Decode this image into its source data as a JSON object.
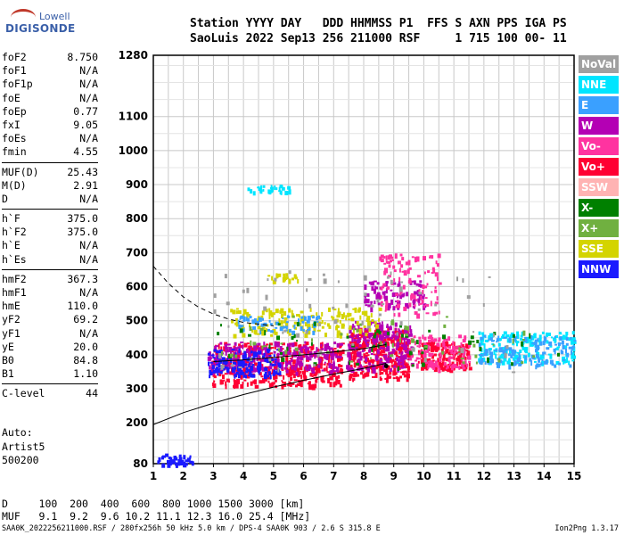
{
  "logo": {
    "line1": "Lowell",
    "line2": "DIGISONDE"
  },
  "header": {
    "line1": "Station YYYY DAY   DDD HHMMSS P1  FFS S AXN PPS IGA PS",
    "line2": "SaoLuis 2022 Sep13 256 211000 RSF     1 715 100 00- 11"
  },
  "params": {
    "group1": [
      {
        "label": "foF2",
        "value": "8.750"
      },
      {
        "label": "foF1",
        "value": "N/A"
      },
      {
        "label": "foF1p",
        "value": "N/A"
      },
      {
        "label": "foE",
        "value": "N/A"
      },
      {
        "label": "foEp",
        "value": "0.77"
      },
      {
        "label": "fxI",
        "value": "9.05"
      },
      {
        "label": "foEs",
        "value": "N/A"
      },
      {
        "label": "fmin",
        "value": "4.55"
      }
    ],
    "group2": [
      {
        "label": "MUF(D)",
        "value": "25.43"
      },
      {
        "label": "M(D)",
        "value": "2.91"
      },
      {
        "label": "D",
        "value": "N/A"
      }
    ],
    "group3": [
      {
        "label": "h`F",
        "value": "375.0"
      },
      {
        "label": "h`F2",
        "value": "375.0"
      },
      {
        "label": "h`E",
        "value": "N/A"
      },
      {
        "label": "h`Es",
        "value": "N/A"
      }
    ],
    "group4": [
      {
        "label": "hmF2",
        "value": "367.3"
      },
      {
        "label": "hmF1",
        "value": "N/A"
      },
      {
        "label": "hmE",
        "value": "110.0"
      },
      {
        "label": "yF2",
        "value": "69.2"
      },
      {
        "label": "yF1",
        "value": "N/A"
      },
      {
        "label": "yE",
        "value": "20.0"
      },
      {
        "label": "B0",
        "value": "84.8"
      },
      {
        "label": "B1",
        "value": "1.10"
      }
    ],
    "group5": [
      {
        "label": "C-level",
        "value": "44"
      }
    ]
  },
  "auto": {
    "line1": "Auto:",
    "line2": "Artist5",
    "line3": "500200"
  },
  "legend": [
    {
      "label": "NoVal",
      "color": "#a0a0a0"
    },
    {
      "label": "NNE",
      "color": "#00e5ff"
    },
    {
      "label": "E",
      "color": "#3aa0ff"
    },
    {
      "label": "W",
      "color": "#b400b4"
    },
    {
      "label": "Vo-",
      "color": "#ff33a0"
    },
    {
      "label": "Vo+",
      "color": "#ff0033"
    },
    {
      "label": "SSW",
      "color": "#ffb3b3"
    },
    {
      "label": "X-",
      "color": "#008000"
    },
    {
      "label": "X+",
      "color": "#70b040"
    },
    {
      "label": "SSE",
      "color": "#d4d400"
    },
    {
      "label": "NNW",
      "color": "#1a1aff"
    }
  ],
  "dmuf": {
    "d_line": "D     100  200  400  600  800 1000 1500 3000 [km]",
    "muf_line": "MUF   9.1  9.2  9.6 10.2 11.1 12.3 16.0 25.4 [MHz]"
  },
  "footer": {
    "left": "SAA0K_2022256211000.RSF / 280fx256h 50 kHz 5.0 km / DPS-4 SAA0K 903 / 2.6 S 315.8 E",
    "right": "Ion2Png 1.3.17"
  },
  "chart_data": {
    "type": "scatter",
    "x_ticks": [
      1,
      2,
      3,
      4,
      5,
      6,
      7,
      8,
      9,
      10,
      11,
      12,
      13,
      14,
      15
    ],
    "y_ticks": [
      80,
      200,
      300,
      400,
      500,
      600,
      700,
      800,
      900,
      1000,
      1100,
      1280
    ],
    "xlim": [
      1,
      15
    ],
    "ylim": [
      80,
      1280
    ],
    "grid": true,
    "legend_position": "right",
    "clusters": [
      {
        "legend": "Vo+",
        "x": [
          2.9,
          7.3
        ],
        "y": [
          310,
          440
        ],
        "n": 420
      },
      {
        "legend": "Vo+",
        "x": [
          7.5,
          9.5
        ],
        "y": [
          330,
          480
        ],
        "n": 320
      },
      {
        "legend": "Vo+",
        "x": [
          9.8,
          11.5
        ],
        "y": [
          360,
          440
        ],
        "n": 160
      },
      {
        "legend": "W",
        "x": [
          2.8,
          7.2
        ],
        "y": [
          350,
          440
        ],
        "n": 260
      },
      {
        "legend": "W",
        "x": [
          7.4,
          9.6
        ],
        "y": [
          360,
          500
        ],
        "n": 200
      },
      {
        "legend": "W",
        "x": [
          8.0,
          10.0
        ],
        "y": [
          540,
          620
        ],
        "n": 90
      },
      {
        "legend": "Vo-",
        "x": [
          8.5,
          10.5
        ],
        "y": [
          520,
          700
        ],
        "n": 110
      },
      {
        "legend": "Vo-",
        "x": [
          9.5,
          11.5
        ],
        "y": [
          360,
          460
        ],
        "n": 110
      },
      {
        "legend": "NNW",
        "x": [
          2.8,
          5.2
        ],
        "y": [
          340,
          420
        ],
        "n": 140
      },
      {
        "legend": "NNW",
        "x": [
          1.0,
          2.3
        ],
        "y": [
          80,
          110
        ],
        "n": 40
      },
      {
        "legend": "SSE",
        "x": [
          3.5,
          8.5
        ],
        "y": [
          460,
          540
        ],
        "n": 160
      },
      {
        "legend": "SSE",
        "x": [
          4.8,
          5.8
        ],
        "y": [
          620,
          640
        ],
        "n": 20
      },
      {
        "legend": "NNE",
        "x": [
          11.8,
          15.0
        ],
        "y": [
          380,
          470
        ],
        "n": 180
      },
      {
        "legend": "NNE",
        "x": [
          4.0,
          5.5
        ],
        "y": [
          880,
          900
        ],
        "n": 30
      },
      {
        "legend": "E",
        "x": [
          11.8,
          15.0
        ],
        "y": [
          370,
          460
        ],
        "n": 120
      },
      {
        "legend": "E",
        "x": [
          3.8,
          6.5
        ],
        "y": [
          470,
          520
        ],
        "n": 60
      },
      {
        "legend": "X-",
        "x": [
          3.0,
          14.5
        ],
        "y": [
          360,
          500
        ],
        "n": 60
      },
      {
        "legend": "X+",
        "x": [
          3.0,
          14.5
        ],
        "y": [
          380,
          520
        ],
        "n": 50
      },
      {
        "legend": "NoVal",
        "x": [
          3.0,
          13.0
        ],
        "y": [
          350,
          650
        ],
        "n": 70
      }
    ],
    "dashed_curve": [
      [
        1.0,
        660
      ],
      [
        1.5,
        610
      ],
      [
        2.0,
        570
      ],
      [
        2.5,
        540
      ],
      [
        3.0,
        520
      ],
      [
        3.5,
        505
      ],
      [
        4.0,
        495
      ],
      [
        4.5,
        490
      ],
      [
        5.0,
        485
      ]
    ],
    "solid_curve_lower": [
      [
        1.0,
        195
      ],
      [
        2.0,
        230
      ],
      [
        3.0,
        258
      ],
      [
        4.0,
        283
      ],
      [
        5.0,
        305
      ],
      [
        6.0,
        325
      ],
      [
        7.0,
        343
      ],
      [
        8.0,
        360
      ],
      [
        8.75,
        375
      ]
    ],
    "solid_curve_upper": [
      [
        3.0,
        380
      ],
      [
        4.0,
        385
      ],
      [
        5.0,
        392
      ],
      [
        6.0,
        400
      ],
      [
        7.0,
        408
      ],
      [
        8.0,
        418
      ],
      [
        8.75,
        430
      ]
    ],
    "foF2_marker": {
      "x": 8.75,
      "y": 367
    }
  }
}
